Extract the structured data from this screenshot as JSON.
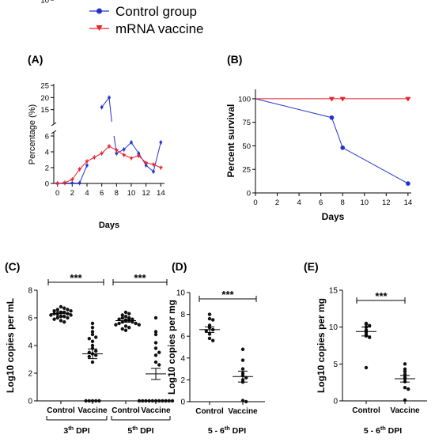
{
  "legend": [
    {
      "label": "Control group",
      "color": "#2233cc",
      "marker": "circle"
    },
    {
      "label": "mRNA vaccine",
      "color": "#e8202a",
      "marker": "triangle-down"
    }
  ],
  "chart_data": [
    {
      "panel": "(A)",
      "type": "line",
      "xlabel": "Days",
      "ylabel": "Percentage (%)",
      "x_ticks": [
        0,
        2,
        4,
        6,
        8,
        10,
        12,
        14
      ],
      "y_ticks": [
        0,
        2,
        4,
        6,
        10,
        15,
        20,
        25
      ],
      "broken_y_axis": true,
      "xlim": [
        -0.5,
        14.5
      ],
      "series": [
        {
          "name": "Control group",
          "color": "#2233cc",
          "x": [
            0,
            1,
            2,
            3,
            4,
            5,
            6,
            7,
            8,
            9,
            10,
            11,
            12,
            13,
            14
          ],
          "y": [
            0,
            0.05,
            0.05,
            0.05,
            2.3,
            9.5,
            16,
            20,
            3.8,
            4.3,
            5.2,
            3.8,
            2.3,
            1.5,
            5.2
          ]
        },
        {
          "name": "mRNA vaccine",
          "color": "#e8202a",
          "x": [
            0,
            1,
            2,
            3,
            4,
            5,
            6,
            7,
            8,
            9,
            10,
            11,
            12,
            13,
            14
          ],
          "y": [
            0,
            0.1,
            0.5,
            1.8,
            2.8,
            3.3,
            3.8,
            4.7,
            4.2,
            3.6,
            3.2,
            3.5,
            2.6,
            2.4,
            2.0
          ]
        }
      ]
    },
    {
      "panel": "(B)",
      "type": "line",
      "xlabel": "Days",
      "ylabel": "Percent survival",
      "x_ticks": [
        0,
        2,
        4,
        6,
        8,
        10,
        12,
        14
      ],
      "y_ticks": [
        0,
        25,
        50,
        75,
        100
      ],
      "xlim": [
        0,
        14.3
      ],
      "ylim": [
        0,
        110
      ],
      "series": [
        {
          "name": "Control group",
          "color": "#2233cc",
          "x": [
            0,
            7,
            8,
            14
          ],
          "y": [
            100,
            80,
            48,
            10
          ]
        },
        {
          "name": "mRNA vaccine",
          "color": "#e8202a",
          "x": [
            0,
            7,
            8,
            14
          ],
          "y": [
            100,
            100,
            100,
            100
          ]
        }
      ]
    },
    {
      "panel": "(C)",
      "type": "scatter",
      "ylabel": "Log10 copies per mL",
      "y_ticks": [
        0,
        2,
        4,
        6,
        8
      ],
      "ylim": [
        0,
        8
      ],
      "significance": [
        "***",
        "***"
      ],
      "groups": [
        {
          "label": "Control",
          "timepoint": "3th DPI",
          "mean": 6.3,
          "sem": 0.15,
          "values": [
            6.8,
            6.7,
            6.6,
            6.6,
            6.5,
            6.5,
            6.4,
            6.4,
            6.3,
            6.3,
            6.3,
            6.2,
            6.2,
            6.1,
            6.1,
            6.0,
            6.0,
            5.9,
            5.8,
            5.7
          ]
        },
        {
          "label": "Vaccine",
          "timepoint": "3th DPI",
          "mean": 3.4,
          "sem": 0.35,
          "values": [
            5.6,
            5.3,
            5.0,
            4.8,
            4.6,
            4.5,
            4.3,
            4.0,
            3.8,
            3.6,
            3.5,
            3.4,
            3.3,
            3.2,
            2.8,
            0,
            0,
            0,
            0,
            0
          ]
        },
        {
          "label": "Control",
          "timepoint": "5th DPI",
          "mean": 5.8,
          "sem": 0.12,
          "values": [
            6.4,
            6.3,
            6.2,
            6.1,
            6.0,
            6.0,
            5.9,
            5.9,
            5.8,
            5.8,
            5.7,
            5.7,
            5.6,
            5.6,
            5.5,
            5.5,
            5.4,
            5.3,
            5.2,
            5.1
          ]
        },
        {
          "label": "Vaccine",
          "timepoint": "5th DPI",
          "mean": 1.95,
          "sem": 0.4,
          "values": [
            6.0,
            5.0,
            4.8,
            4.2,
            3.8,
            3.5,
            3.3,
            2.8,
            2.6,
            0,
            0,
            0,
            0,
            0,
            0,
            0,
            0,
            0,
            0,
            0
          ]
        }
      ],
      "timepoint_labels": [
        "3th DPI",
        "5th DPI"
      ]
    },
    {
      "panel": "(D)",
      "type": "scatter",
      "ylabel": "Log10 copies per mg",
      "y_ticks": [
        0,
        2,
        4,
        6,
        8,
        10
      ],
      "ylim": [
        0,
        10
      ],
      "significance": [
        "***"
      ],
      "groups": [
        {
          "label": "Control",
          "mean": 6.6,
          "sem": 0.25,
          "values": [
            8.0,
            7.6,
            7.5,
            7.0,
            6.8,
            6.6,
            6.5,
            6.2,
            5.8,
            5.6
          ]
        },
        {
          "label": "Vaccine",
          "mean": 2.3,
          "sem": 0.5,
          "values": [
            4.8,
            3.8,
            3.0,
            2.6,
            2.4,
            2.2,
            2.0,
            1.8,
            0.1,
            0
          ]
        }
      ],
      "group_caption": "5 - 6th DPI"
    },
    {
      "panel": "(E)",
      "type": "scatter",
      "ylabel": "Log10 copies per mg",
      "y_ticks": [
        0,
        5,
        10,
        15
      ],
      "ylim": [
        0,
        15
      ],
      "significance": [
        "***"
      ],
      "groups": [
        {
          "label": "Control",
          "mean": 9.4,
          "sem": 0.6,
          "values": [
            10.5,
            10.4,
            10.2,
            10.0,
            9.6,
            9.3,
            9.0,
            8.8,
            8.6,
            4.5
          ]
        },
        {
          "label": "Vaccine",
          "mean": 3.0,
          "sem": 0.45,
          "values": [
            5.0,
            4.3,
            4.0,
            3.6,
            3.2,
            3.0,
            2.6,
            1.8,
            1.6,
            0.1
          ]
        }
      ],
      "group_caption": "5 - 6th DPI"
    }
  ]
}
